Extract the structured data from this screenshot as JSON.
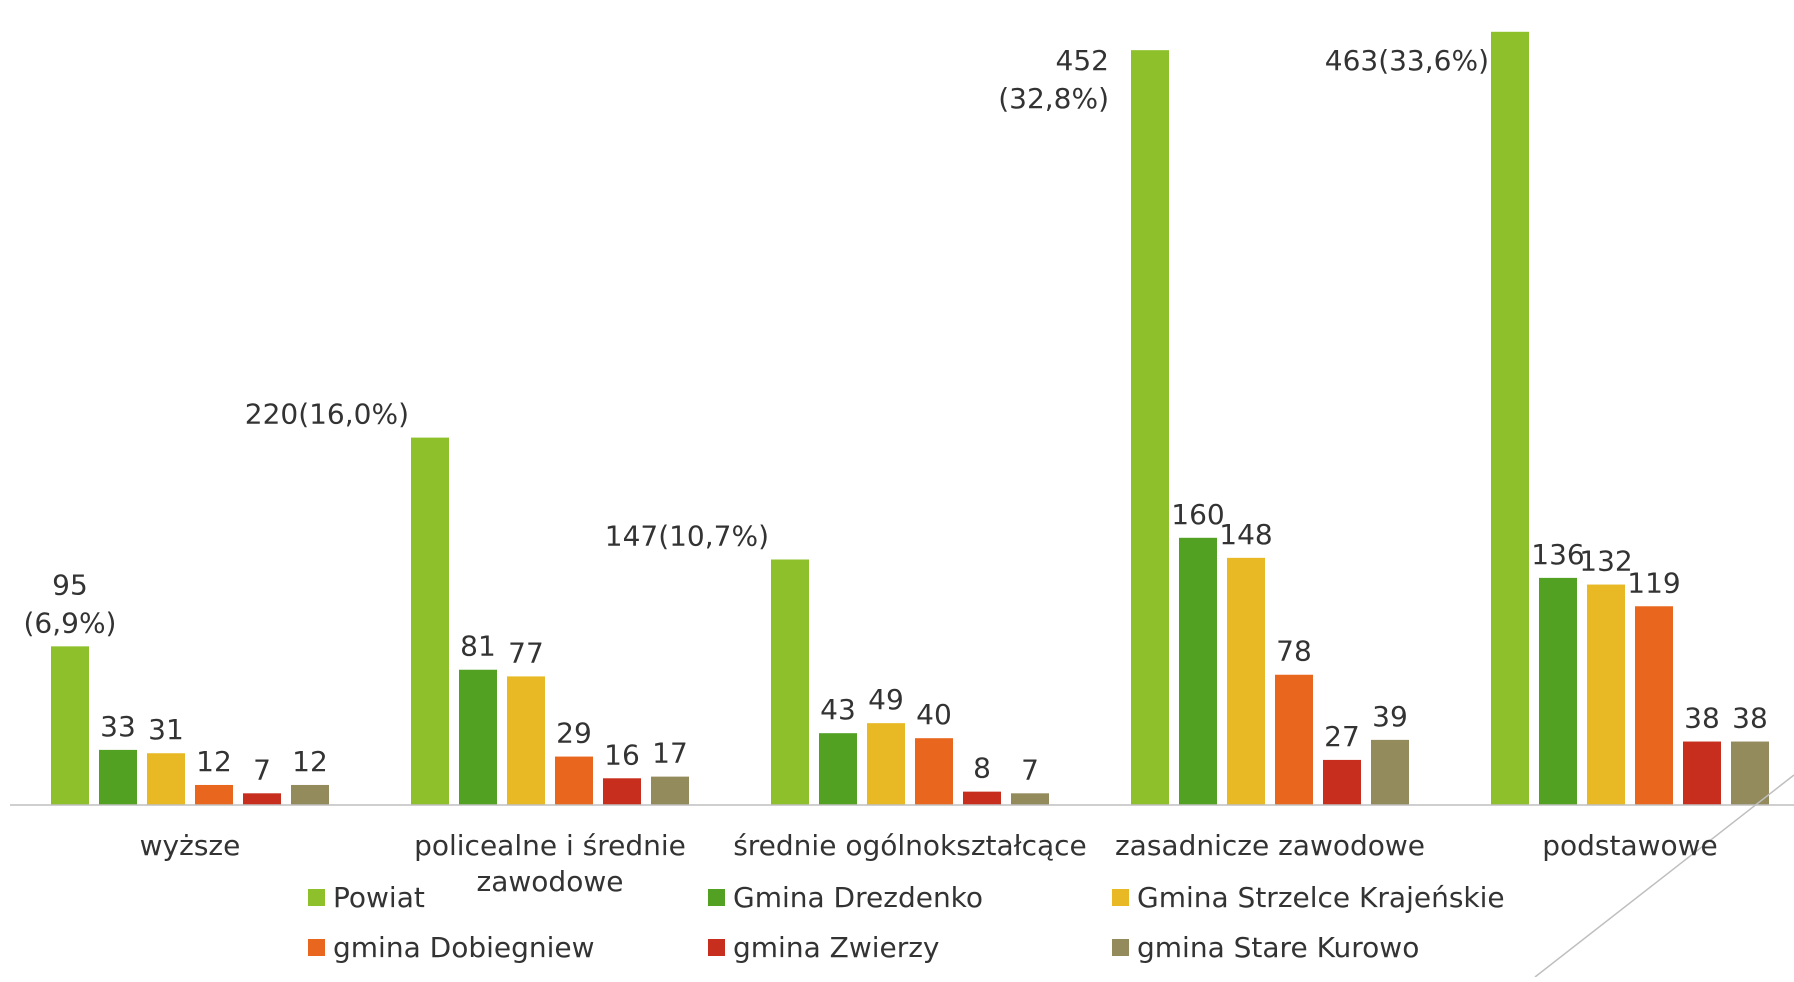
{
  "chart_data": {
    "type": "bar",
    "categories": [
      "wyższe",
      "policealne i średnie zawodowe",
      "średnie ogólnokształcące",
      "zasadnicze zawodowe",
      "podstawowe"
    ],
    "category_label_lines": [
      [
        "wyższe"
      ],
      [
        "policealne i średnie",
        "zawodowe"
      ],
      [
        "średnie ogólnokształcące"
      ],
      [
        "zasadnicze zawodowe"
      ],
      [
        "podstawowe"
      ]
    ],
    "series": [
      {
        "name": "Powiat",
        "color": "#8dc02a",
        "values": [
          95,
          220,
          147,
          452,
          463
        ],
        "labels": [
          [
            "95",
            "(6,9%)"
          ],
          [
            "220(16,0%)"
          ],
          [
            "147(10,7%)"
          ],
          [
            "452",
            "(32,8%)"
          ],
          [
            "463(33,6%)"
          ]
        ]
      },
      {
        "name": "Gmina Drezdenko",
        "color": "#52a123",
        "values": [
          33,
          81,
          43,
          160,
          136
        ]
      },
      {
        "name": "Gmina Strzelce Krajeńskie",
        "color": "#e8b924",
        "values": [
          31,
          77,
          49,
          148,
          132
        ]
      },
      {
        "name": "gmina Dobiegniew",
        "color": "#e8661e",
        "values": [
          12,
          29,
          40,
          78,
          119
        ]
      },
      {
        "name": "gmina Zwierzy",
        "color": "#c72e1e",
        "values": [
          7,
          16,
          8,
          27,
          38
        ]
      },
      {
        "name": "gmina Stare Kurowo",
        "color": "#948b5d",
        "values": [
          12,
          17,
          7,
          39,
          38
        ]
      }
    ],
    "ylim": [
      0,
      470
    ],
    "grid": false,
    "legend_position": "bottom",
    "axis_color": "#bfbfbf"
  }
}
